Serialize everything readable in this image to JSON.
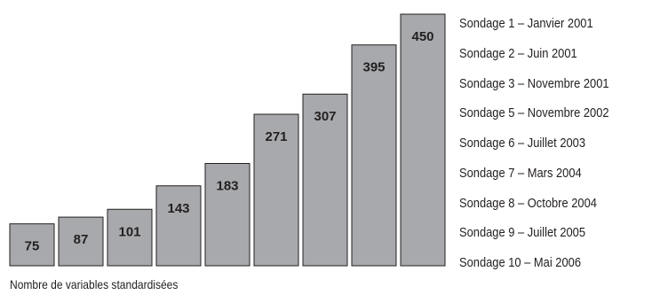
{
  "chart_data": {
    "type": "bar",
    "categories": [
      "Sondage 1 – Janvier 2001",
      "Sondage 2 – Juin 2001",
      "Sondage 3 – Novembre 2001",
      "Sondage 5 – Novembre 2002",
      "Sondage 6 – Juillet 2003",
      "Sondage 7 – Mars 2004",
      "Sondage 8 – Octobre 2004",
      "Sondage 9 – Juillet 2005",
      "Sondage 10 – Mai 2006"
    ],
    "values": [
      75,
      87,
      101,
      143,
      183,
      271,
      307,
      395,
      450
    ],
    "xlabel": "Nombre de variables standardisées",
    "ylim": [
      0,
      450
    ],
    "grid": false,
    "legend_placement": "right",
    "colors": {
      "bar_fill": "#a7a9ac",
      "bar_stroke": "#231f20",
      "text": "#231f20"
    }
  }
}
